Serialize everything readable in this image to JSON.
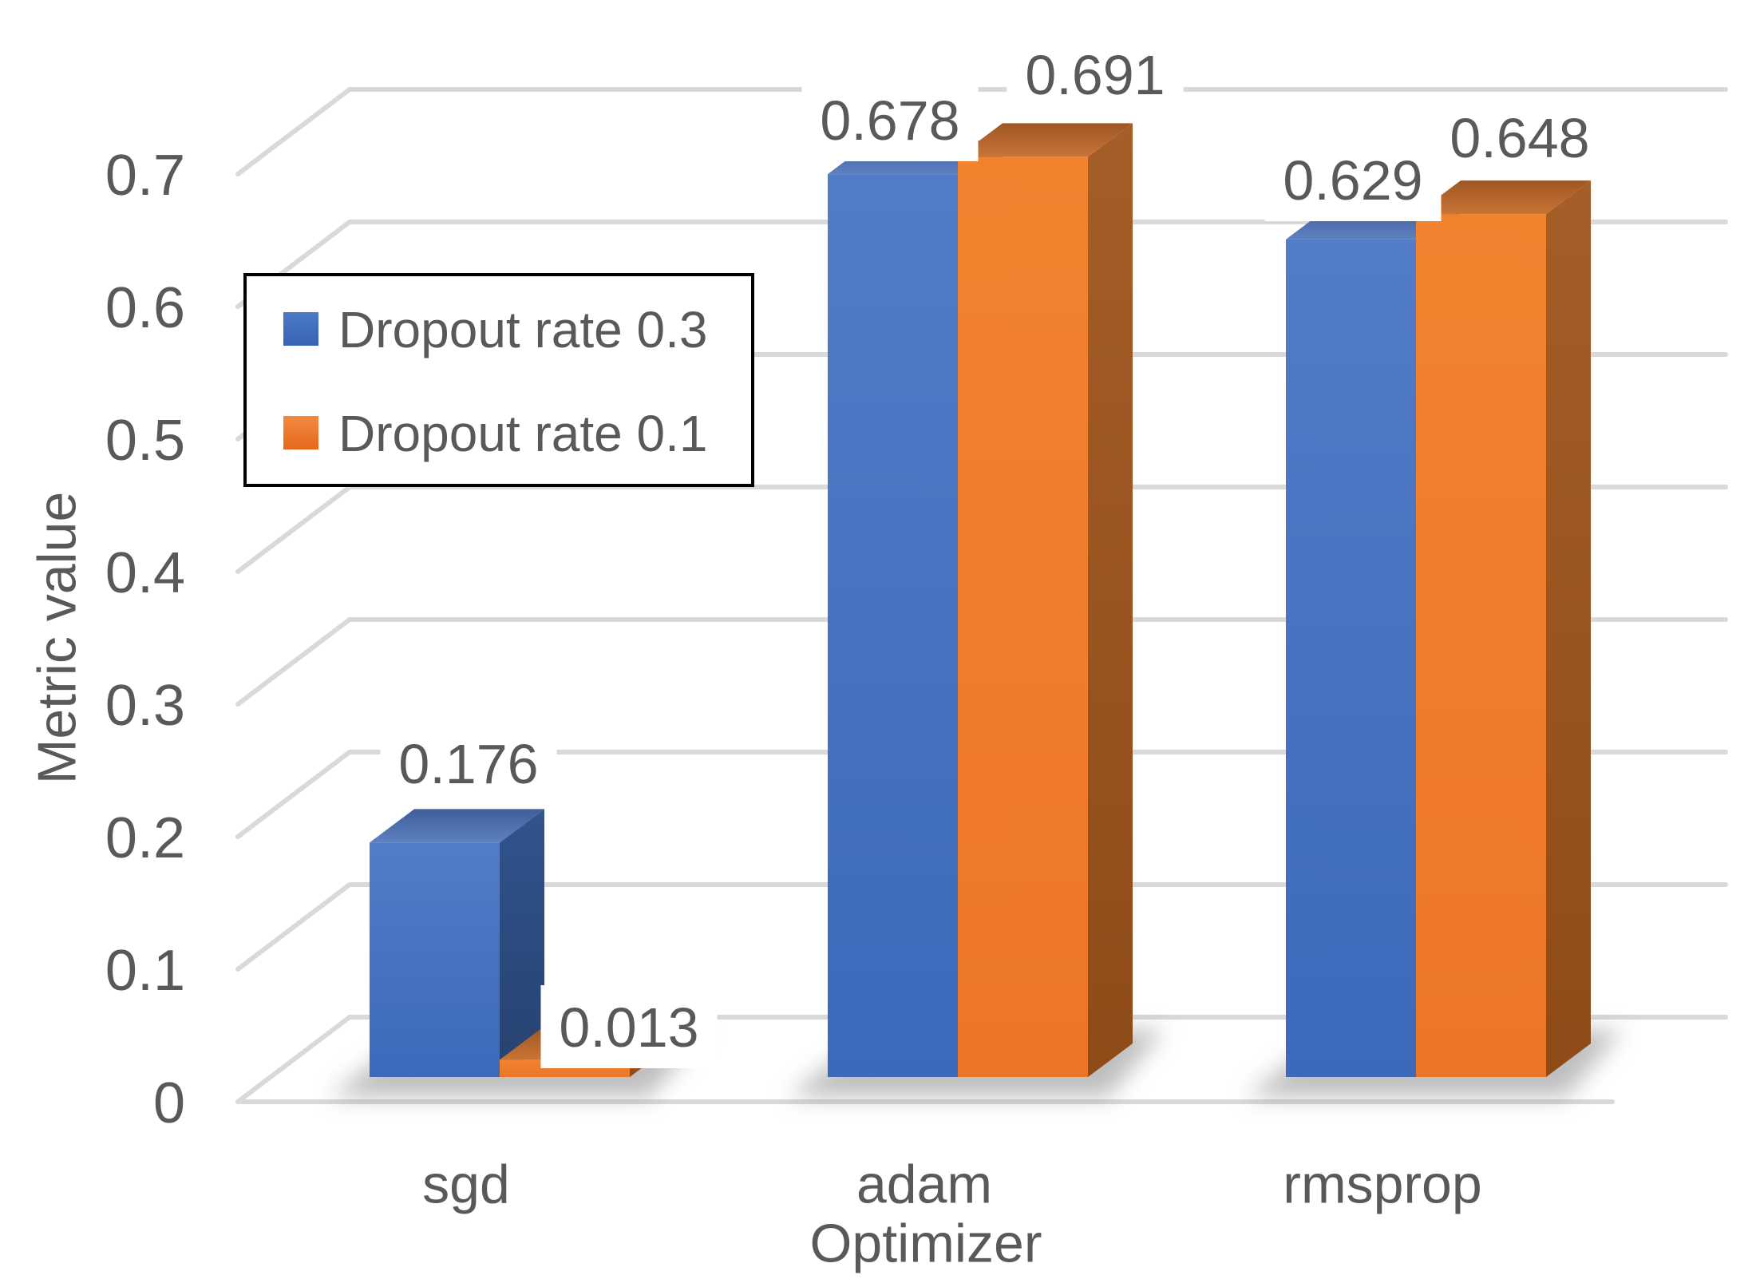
{
  "chart_data": {
    "type": "bar",
    "subtype": "3d-clustered-column",
    "title": "",
    "xlabel": "Optimizer",
    "ylabel": "Metric value",
    "categories": [
      "sgd",
      "adam",
      "rmsprop"
    ],
    "series": [
      {
        "name": "Dropout rate 0.3",
        "color": "#4472C4",
        "values": [
          0.176,
          0.678,
          0.629
        ],
        "labels": [
          "0.176",
          "0.678",
          "0.629"
        ]
      },
      {
        "name": "Dropout rate 0.1",
        "color": "#ED7D31",
        "values": [
          0.013,
          0.691,
          0.648
        ],
        "labels": [
          "0.013",
          "0.691",
          "0.648"
        ]
      }
    ],
    "ylim": [
      0,
      0.75
    ],
    "yticks": [
      0,
      0.1,
      0.2,
      0.3,
      0.4,
      0.5,
      0.6,
      0.7
    ],
    "ytick_labels": [
      "0",
      "0.1",
      "0.2",
      "0.3",
      "0.4",
      "0.5",
      "0.6",
      "0.7"
    ],
    "grid": true,
    "legend_position": "upper-left-inside",
    "colors": {
      "series1_front": "#4472C4",
      "series1_side": "#2C4E86",
      "series1_top": "#44639D",
      "series2_front": "#ED7D31",
      "series2_side": "#9E5420",
      "series2_top": "#B06A38",
      "gridline": "#D9D9D9",
      "axis_text": "#595959",
      "data_label_text": "#3E3E3E",
      "legend_border": "#000000",
      "background": "#FFFFFF"
    }
  }
}
